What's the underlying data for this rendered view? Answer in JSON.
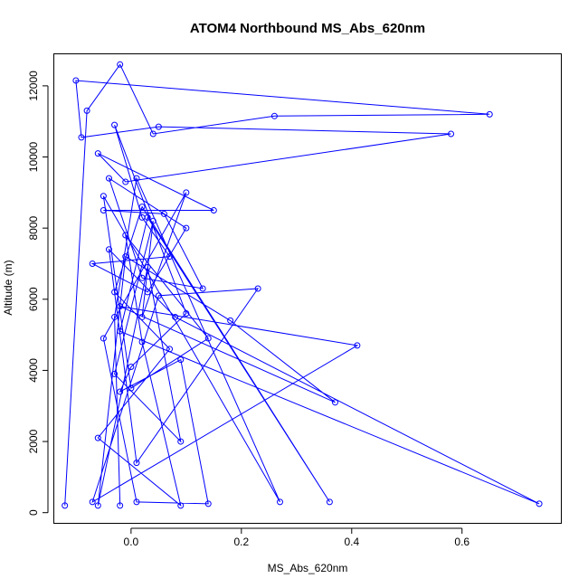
{
  "chart_data": {
    "type": "line",
    "title": "ATOM4 Northbound MS_Abs_620nm",
    "xlabel": "MS_Abs_620nm",
    "ylabel": "Altitude (m)",
    "xlim": [
      -0.14,
      0.78
    ],
    "ylim": [
      -300,
      12900
    ],
    "xticks": [
      0.0,
      0.2,
      0.4,
      0.6
    ],
    "xtick_labels": [
      "0.0",
      "0.2",
      "0.4",
      "0.6"
    ],
    "yticks": [
      0,
      2000,
      4000,
      6000,
      8000,
      10000,
      12000
    ],
    "ytick_labels": [
      "0",
      "2000",
      "4000",
      "6000",
      "8000",
      "10000",
      "12000"
    ],
    "grid": false,
    "color": "#0000ff",
    "series": [
      {
        "x": [
          -0.12,
          -0.08,
          -0.02,
          0.04,
          0.26,
          0.65,
          -0.1,
          -0.09,
          0.05,
          0.58,
          -0.01,
          -0.06,
          0.15,
          -0.05,
          0.06,
          0.13,
          0.02,
          -0.04,
          0.1,
          0.03,
          -0.07,
          0.07,
          0.02,
          -0.03,
          0.1,
          0.0,
          -0.02,
          0.09,
          0.14,
          0.01,
          -0.05,
          0.1,
          0.02,
          0.04,
          -0.03,
          0.09,
          0.03,
          -0.06,
          -0.01,
          0.18,
          0.37,
          -0.02,
          0.41,
          -0.07,
          0.05,
          0.23,
          0.01,
          -0.04,
          0.08,
          0.74,
          -0.02,
          0.03,
          0.36,
          0.02,
          -0.03,
          0.07,
          -0.06,
          0.09,
          0.02,
          -0.01,
          0.14,
          0.0,
          -0.05,
          0.27,
          0.01,
          -0.03,
          -0.02
        ],
        "y": [
          200,
          11300,
          12600,
          10650,
          11150,
          11200,
          12150,
          10550,
          10850,
          10650,
          9300,
          10100,
          8500,
          8500,
          8400,
          6300,
          6600,
          9400,
          8000,
          6200,
          7000,
          7200,
          8300,
          10900,
          5600,
          4100,
          3400,
          4300,
          250,
          300,
          4900,
          9000,
          5500,
          8200,
          3900,
          2000,
          6900,
          200,
          7200,
          5400,
          3100,
          5800,
          4700,
          300,
          6100,
          6300,
          1400,
          7400,
          5500,
          250,
          5100,
          8300,
          300,
          8600,
          6200,
          4600,
          2100,
          200,
          4800,
          7800,
          4900,
          3500,
          8900,
          300,
          9400,
          5500,
          200
        ]
      }
    ]
  }
}
